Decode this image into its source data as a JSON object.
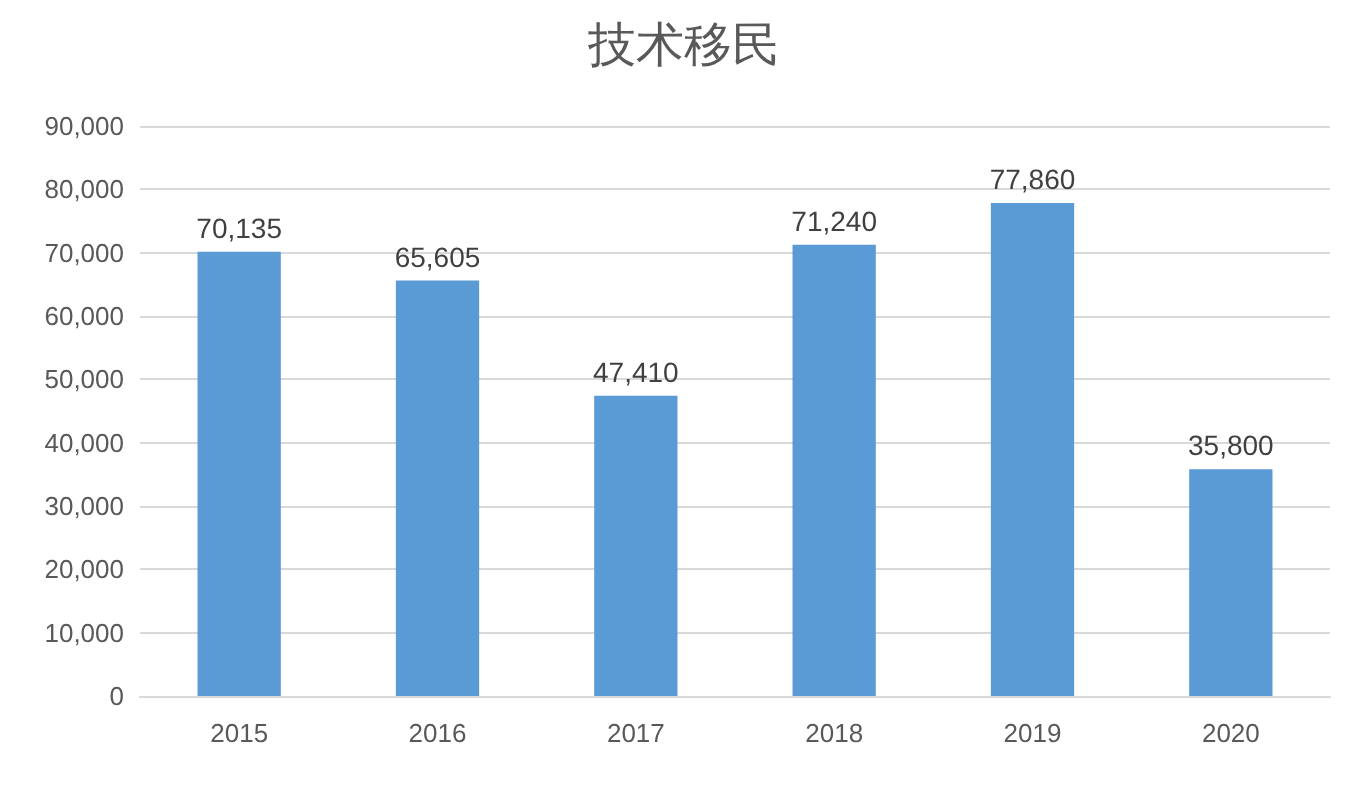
{
  "chart_data": {
    "type": "bar",
    "title": "技术移民",
    "categories": [
      "2015",
      "2016",
      "2017",
      "2018",
      "2019",
      "2020"
    ],
    "values": [
      70135,
      65605,
      47410,
      71240,
      77860,
      35800
    ],
    "value_labels": [
      "70,135",
      "65,605",
      "47,410",
      "71,240",
      "77,860",
      "35,800"
    ],
    "color": "#5b9bd5",
    "ylim": [
      0,
      90000
    ],
    "yticks": [
      0,
      {
        "value": 10000,
        "label": "10,000"
      },
      {
        "value": 20000,
        "label": "20,000"
      },
      {
        "value": 30000,
        "label": "30,000"
      },
      {
        "value": 40000,
        "label": "40,000"
      },
      {
        "value": 50000,
        "label": "50,000"
      },
      {
        "value": 60000,
        "label": "60,000"
      },
      {
        "value": 70000,
        "label": "70,000"
      },
      {
        "value": 80000,
        "label": "80,000"
      },
      {
        "value": 90000,
        "label": "90,000"
      }
    ],
    "grid": "y"
  }
}
